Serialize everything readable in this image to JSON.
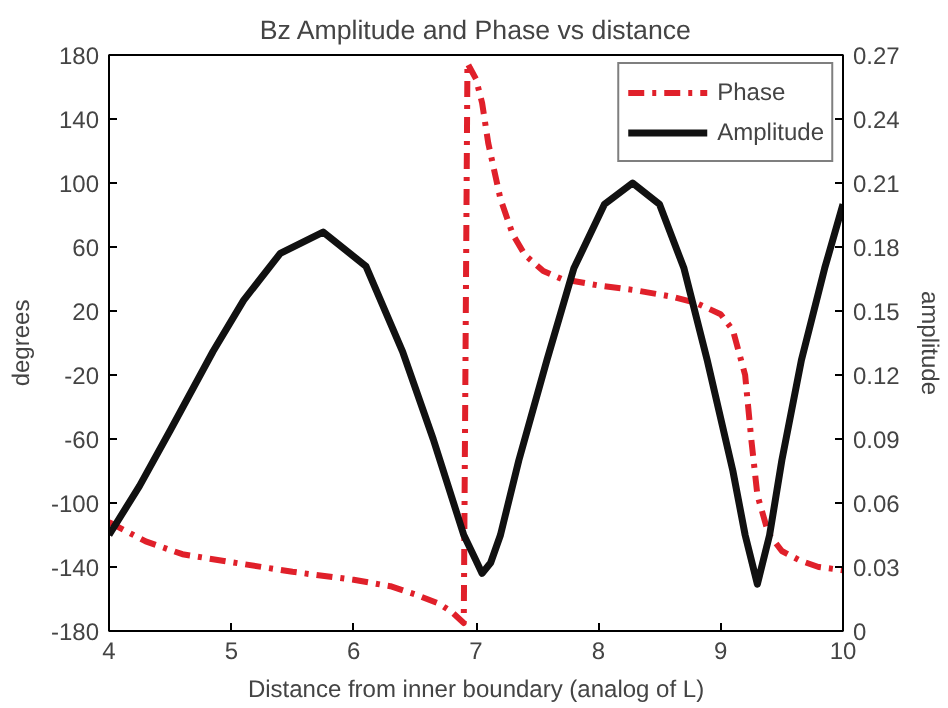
{
  "chart_data": {
    "type": "line",
    "title": "Bz Amplitude and Phase vs distance",
    "xlabel": "Distance from inner boundary (analog of L)",
    "ylabel": "degrees",
    "y2label": "amplitude",
    "xlim": [
      4,
      10
    ],
    "xticks": [
      4,
      5,
      6,
      7,
      8,
      9,
      10
    ],
    "ylim": [
      -180,
      180
    ],
    "yticks": [
      -180,
      -140,
      -100,
      -60,
      -20,
      20,
      60,
      100,
      140,
      180
    ],
    "y2lim": [
      0,
      0.27
    ],
    "y2ticks": [
      0,
      0.03,
      0.06,
      0.09,
      0.12,
      0.15,
      0.18,
      0.21,
      0.24,
      0.27
    ],
    "grid": false,
    "legend": "top right",
    "marker": "none",
    "series": [
      {
        "name": "Phase",
        "color": "#e0202a",
        "line_style": "dashed",
        "x": [
          4,
          4.3,
          4.6,
          5,
          5.5,
          6,
          6.3,
          6.5,
          6.7,
          6.8,
          6.9,
          6.93,
          6.95,
          7.0,
          7.05,
          7.1,
          7.2,
          7.3,
          7.4,
          7.55,
          7.7,
          8,
          8.3,
          8.6,
          8.8,
          9.0,
          9.1,
          9.2,
          9.25,
          9.3,
          9.39,
          9.5,
          9.65,
          9.8,
          10
        ],
        "values": [
          -112,
          -124,
          -132,
          -137,
          -143,
          -148,
          -152,
          -157,
          -163,
          -168,
          -175,
          175,
          172,
          165,
          150,
          125,
          90,
          68,
          55,
          45,
          40,
          36,
          33,
          29,
          25,
          18,
          8,
          -20,
          -60,
          -95,
          -119,
          -130,
          -136,
          -140,
          -142
        ]
      },
      {
        "name": "Amplitude",
        "color": "#111111",
        "line_style": "solid",
        "axis": "y2",
        "x": [
          4,
          4.25,
          4.5,
          4.85,
          5.1,
          5.4,
          5.75,
          6.1,
          6.4,
          6.65,
          6.9,
          7.0,
          7.05,
          7.12,
          7.2,
          7.35,
          7.58,
          7.8,
          8.05,
          8.28,
          8.5,
          8.7,
          8.89,
          9.1,
          9.2,
          9.3,
          9.4,
          9.5,
          9.66,
          9.85,
          10
        ],
        "values": [
          0.045,
          0.068,
          0.094,
          0.131,
          0.155,
          0.177,
          0.187,
          0.171,
          0.131,
          0.09,
          0.045,
          0.033,
          0.027,
          0.032,
          0.045,
          0.08,
          0.127,
          0.17,
          0.2,
          0.21,
          0.2,
          0.17,
          0.127,
          0.075,
          0.045,
          0.022,
          0.045,
          0.08,
          0.127,
          0.17,
          0.2
        ]
      }
    ]
  }
}
